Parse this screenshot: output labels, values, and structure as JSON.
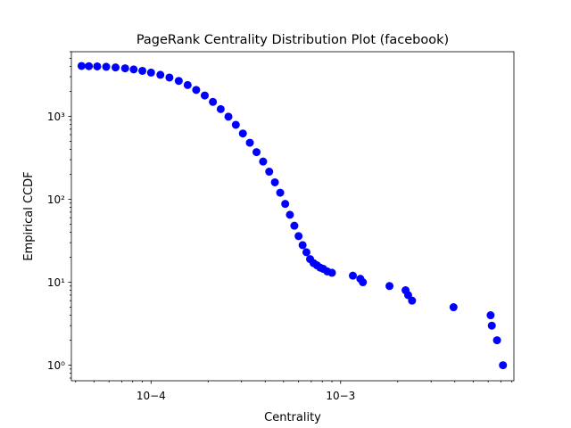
{
  "chart_data": {
    "type": "scatter",
    "title": "PageRank Centrality Distribution Plot (facebook)",
    "xlabel": "Centrality",
    "ylabel": "Empirical CCDF",
    "xscale": "log",
    "yscale": "log",
    "xlim": [
      3.8e-05,
      0.0082
    ],
    "ylim": [
      0.65,
      6000
    ],
    "x_ticks": [
      {
        "value": 0.0001,
        "label": "10−4"
      },
      {
        "value": 0.001,
        "label": "10−3"
      }
    ],
    "y_ticks": [
      {
        "value": 1,
        "label": "10⁰"
      },
      {
        "value": 10,
        "label": "10¹"
      },
      {
        "value": 100,
        "label": "10²"
      },
      {
        "value": 1000,
        "label": "10³"
      }
    ],
    "grid": false,
    "marker_color": "#0000ff",
    "series": [
      {
        "x": [
          4.3e-05,
          4.7e-05,
          5.2e-05,
          5.8e-05,
          6.5e-05,
          7.3e-05,
          8.1e-05,
          9e-05,
          0.0001,
          0.000112,
          0.000125,
          0.00014,
          0.000156,
          0.000173,
          0.000192,
          0.000212,
          0.000233,
          0.000256,
          0.00028,
          0.000305,
          0.000332,
          0.00036,
          0.00039,
          0.00042,
          0.00045,
          0.00048,
          0.00051,
          0.00054,
          0.00057,
          0.0006,
          0.00063,
          0.00066,
          0.00069,
          0.00072,
          0.00075,
          0.00078,
          0.00081,
          0.00085,
          0.0009,
          0.00116,
          0.00127,
          0.00131,
          0.00181,
          0.0022,
          0.00227,
          0.00238,
          0.00394,
          0.00618,
          0.00627,
          0.00668,
          0.00718
        ],
        "y": [
          4039,
          4020,
          3990,
          3950,
          3880,
          3790,
          3670,
          3530,
          3360,
          3160,
          2930,
          2670,
          2380,
          2080,
          1780,
          1490,
          1220,
          990,
          790,
          620,
          480,
          370,
          285,
          215,
          160,
          120,
          88,
          65,
          48,
          36,
          28,
          23,
          19,
          17,
          16,
          15,
          14.5,
          13.5,
          13,
          12,
          11,
          10,
          9,
          8,
          7,
          6,
          5,
          4,
          3,
          2,
          1
        ]
      }
    ]
  }
}
